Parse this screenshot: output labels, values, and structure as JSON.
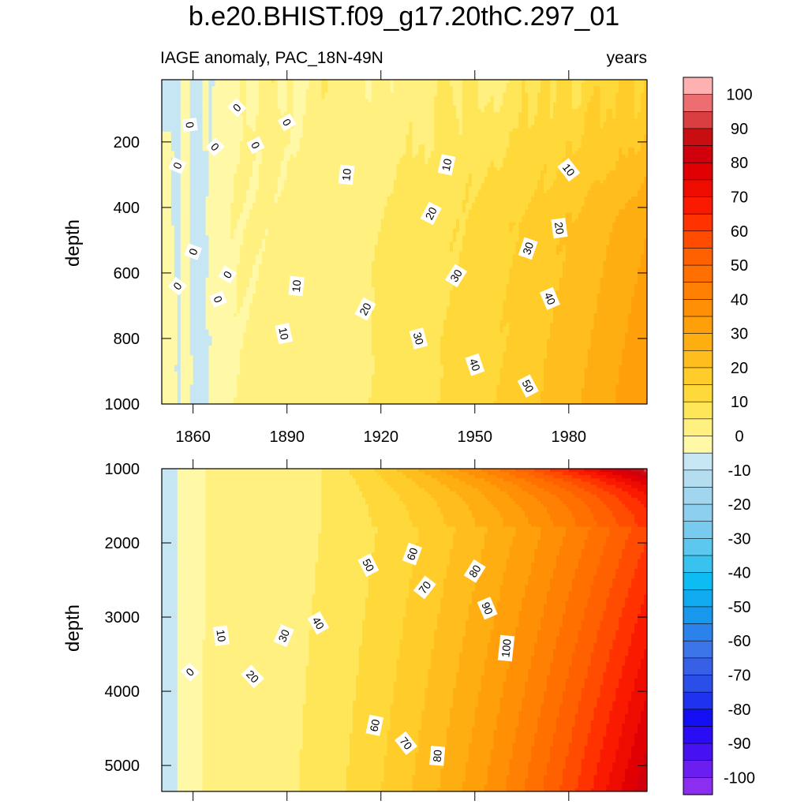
{
  "title": "b.e20.BHIST.f09_g17.20thC.297_01",
  "subtitle_left": "IAGE anomaly, PAC_18N-49N",
  "subtitle_right": "years",
  "colorbar": {
    "levels": [
      -100,
      -95,
      -90,
      -85,
      -80,
      -75,
      -70,
      -65,
      -60,
      -55,
      -50,
      -45,
      -40,
      -35,
      -30,
      -25,
      -20,
      -15,
      -10,
      -5,
      0,
      5,
      10,
      15,
      20,
      25,
      30,
      35,
      40,
      45,
      50,
      55,
      60,
      65,
      70,
      75,
      80,
      85,
      90,
      95,
      100
    ],
    "colors": [
      "#8c2ef0",
      "#6a1ef0",
      "#4612f2",
      "#2a0cf5",
      "#140ff2",
      "#1e32f0",
      "#2a4ee8",
      "#3860e6",
      "#3c74ea",
      "#2a82ea",
      "#1898ec",
      "#10aaf0",
      "#0cbcf2",
      "#38c2f0",
      "#5cc8f0",
      "#78cbef",
      "#8ccfef",
      "#a2d6ee",
      "#b4ddf0",
      "#c6e6f4",
      "#fff8a6",
      "#fff080",
      "#ffe658",
      "#ffd83a",
      "#ffcc2a",
      "#ffbe1e",
      "#ffae12",
      "#ffa00a",
      "#ff9006",
      "#ff8002",
      "#ff7000",
      "#ff6000",
      "#ff4c00",
      "#ff3200",
      "#fa1a00",
      "#ee0c00",
      "#e00004",
      "#d0000c",
      "#c80e10",
      "#da3e40",
      "#ec6e70",
      "#ffb0b0"
    ],
    "tick_labels": [
      "-100",
      "-90",
      "-80",
      "-70",
      "-60",
      "-50",
      "-40",
      "-30",
      "-20",
      "-10",
      "0",
      "10",
      "20",
      "30",
      "40",
      "50",
      "60",
      "70",
      "80",
      "90",
      "100"
    ]
  },
  "chart_data": [
    {
      "type": "contour",
      "panel": "top",
      "x_range": [
        1850,
        2005
      ],
      "y_range": [
        1000,
        10
      ],
      "x_ticks": [
        "1860",
        "1890",
        "1920",
        "1950",
        "1980"
      ],
      "y_ticks": [
        "200",
        "400",
        "600",
        "800",
        "1000"
      ],
      "ylabel": "depth",
      "contour_labels": [
        {
          "text": "0",
          "x": 1874,
          "y": 95
        },
        {
          "text": "0",
          "x": 1859,
          "y": 148
        },
        {
          "text": "0",
          "x": 1867,
          "y": 215
        },
        {
          "text": "0",
          "x": 1855,
          "y": 272
        },
        {
          "text": "0",
          "x": 1890,
          "y": 140
        },
        {
          "text": "0",
          "x": 1880,
          "y": 210
        },
        {
          "text": "0",
          "x": 1860,
          "y": 535
        },
        {
          "text": "0",
          "x": 1855,
          "y": 640
        },
        {
          "text": "0",
          "x": 1871,
          "y": 605
        },
        {
          "text": "0",
          "x": 1868,
          "y": 680
        },
        {
          "text": "10",
          "x": 1909,
          "y": 300
        },
        {
          "text": "10",
          "x": 1941,
          "y": 270
        },
        {
          "text": "10",
          "x": 1980,
          "y": 285
        },
        {
          "text": "10",
          "x": 1893,
          "y": 640
        },
        {
          "text": "10",
          "x": 1889,
          "y": 785
        },
        {
          "text": "20",
          "x": 1936,
          "y": 418
        },
        {
          "text": "20",
          "x": 1977,
          "y": 463
        },
        {
          "text": "20",
          "x": 1915,
          "y": 710
        },
        {
          "text": "30",
          "x": 1967,
          "y": 525
        },
        {
          "text": "30",
          "x": 1944,
          "y": 608
        },
        {
          "text": "30",
          "x": 1932,
          "y": 800
        },
        {
          "text": "40",
          "x": 1974,
          "y": 678
        },
        {
          "text": "40",
          "x": 1950,
          "y": 880
        },
        {
          "text": "50",
          "x": 1967,
          "y": 945
        }
      ]
    },
    {
      "type": "contour",
      "panel": "bottom",
      "x_range": [
        1850,
        2005
      ],
      "y_range": [
        1000,
        5350
      ],
      "x_ticks": [
        "1860",
        "1890",
        "1920",
        "1950",
        "1980"
      ],
      "y_ticks": [
        "1000",
        "2000",
        "3000",
        "4000",
        "5000"
      ],
      "ylabel": "depth",
      "contour_labels": [
        {
          "text": "0",
          "x": 1859,
          "y": 3740
        },
        {
          "text": "10",
          "x": 1869,
          "y": 3250
        },
        {
          "text": "20",
          "x": 1879,
          "y": 3800
        },
        {
          "text": "30",
          "x": 1889,
          "y": 3250
        },
        {
          "text": "40",
          "x": 1900,
          "y": 3080
        },
        {
          "text": "50",
          "x": 1916,
          "y": 2300
        },
        {
          "text": "60",
          "x": 1930,
          "y": 2150
        },
        {
          "text": "70",
          "x": 1934,
          "y": 2600
        },
        {
          "text": "80",
          "x": 1950,
          "y": 2380
        },
        {
          "text": "90",
          "x": 1954,
          "y": 2880
        },
        {
          "text": "100",
          "x": 1960,
          "y": 3420
        },
        {
          "text": "60",
          "x": 1918,
          "y": 4460
        },
        {
          "text": "70",
          "x": 1928,
          "y": 4700
        },
        {
          "text": "80",
          "x": 1938,
          "y": 4870
        }
      ]
    }
  ]
}
